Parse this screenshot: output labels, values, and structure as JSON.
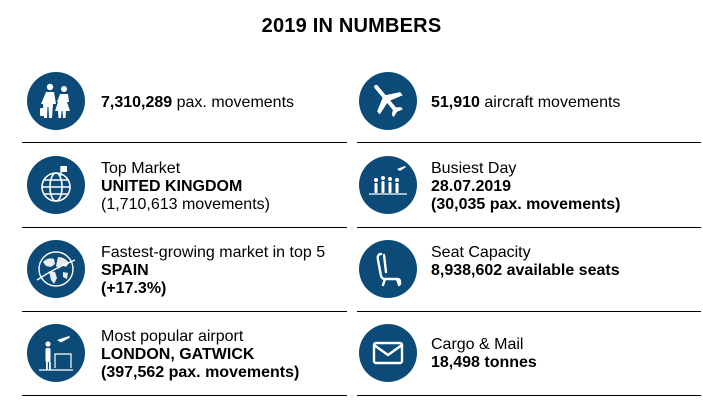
{
  "title": "2019 IN NUMBERS",
  "accent_color": "#0c4a78",
  "stats": {
    "pax": {
      "icon": "passengers-icon",
      "value": "7,310,289",
      "label": " pax. movements"
    },
    "aircraft": {
      "icon": "airplane-icon",
      "value": "51,910",
      "label": " aircraft movements"
    },
    "top_market": {
      "icon": "globe-icon",
      "heading": "Top Market",
      "value": "UNITED KINGDOM",
      "detail": "(1,710,613 movements)"
    },
    "busiest_day": {
      "icon": "crowd-icon",
      "heading": "Busiest Day",
      "value": "28.07.2019",
      "detail": "(30,035 pax. movements)"
    },
    "fastest_market": {
      "icon": "world-map-icon",
      "heading": "Fastest-growing market in top 5",
      "value": "SPAIN",
      "detail": "(+17.3%)"
    },
    "seat_capacity": {
      "icon": "seat-icon",
      "heading": "Seat Capacity",
      "value": "8,938,602 available seats"
    },
    "popular_airport": {
      "icon": "airport-traveller-icon",
      "heading": "Most popular airport",
      "value": "LONDON, GATWICK",
      "detail": "(397,562 pax. movements)"
    },
    "cargo": {
      "icon": "envelope-icon",
      "heading": "Cargo & Mail",
      "value": "18,498 tonnes"
    }
  }
}
